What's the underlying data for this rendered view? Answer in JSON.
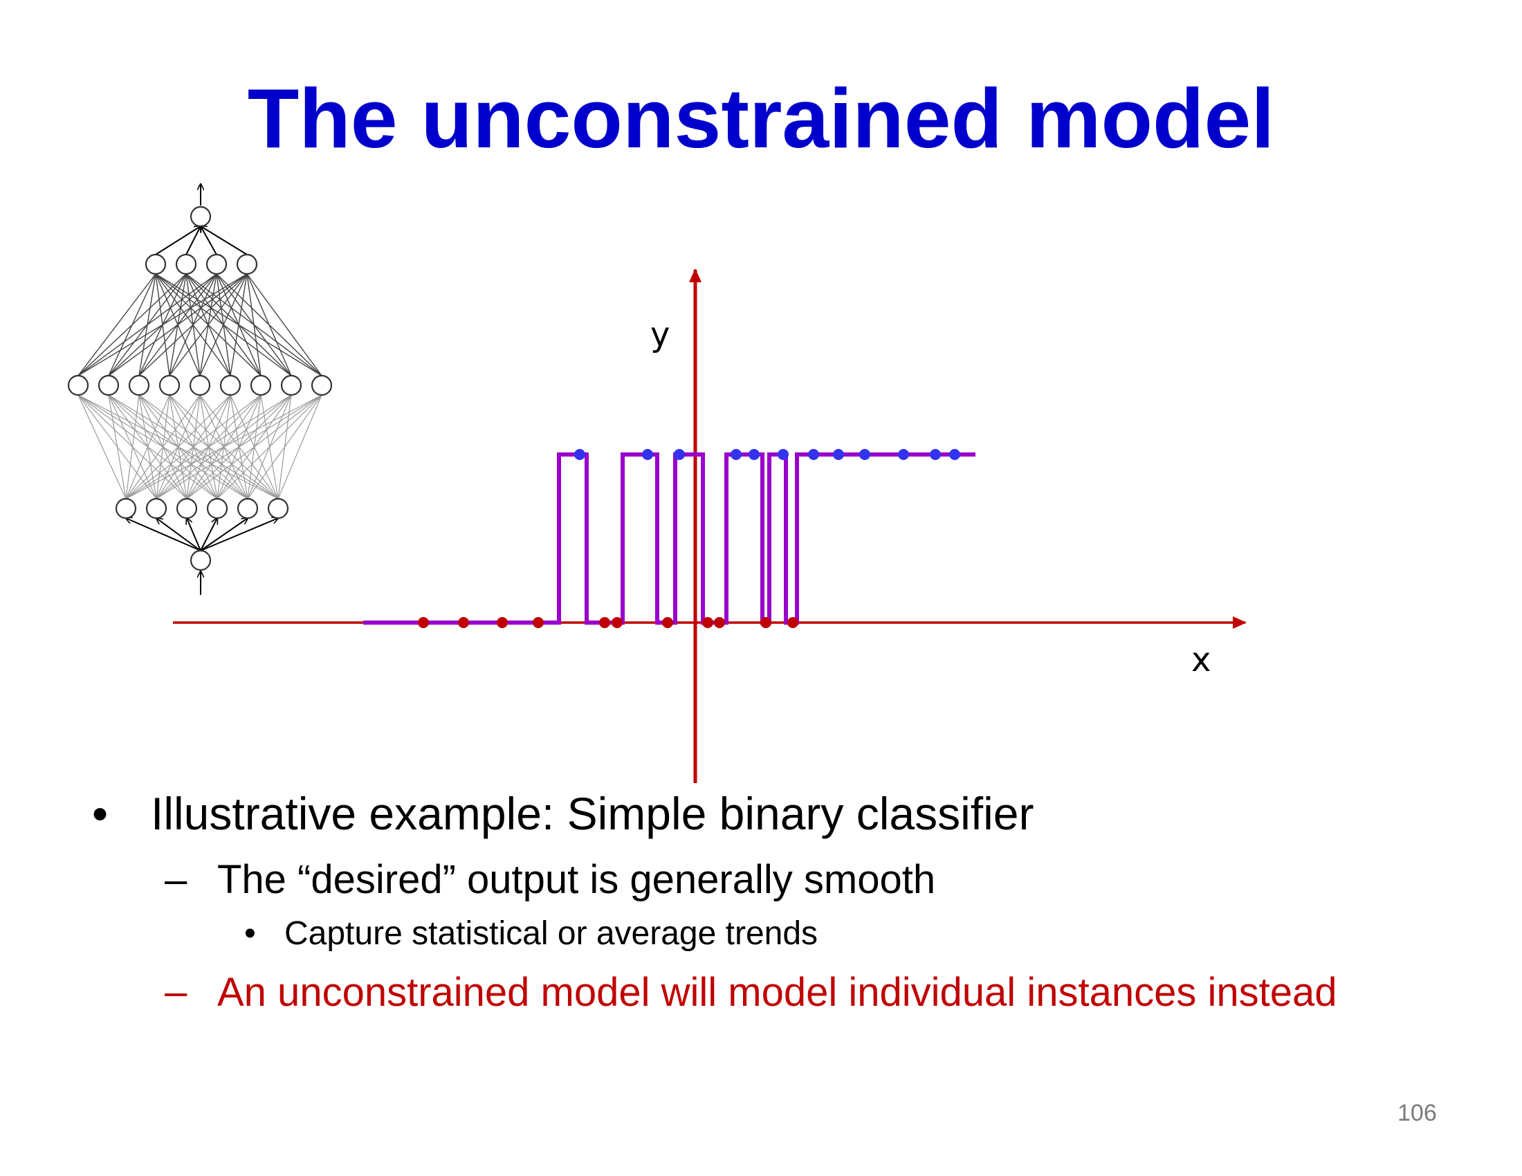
{
  "slide": {
    "title": "The unconstrained model",
    "page_number": "106"
  },
  "bullets": {
    "level1_marker": "•",
    "level1_text": "Illustrative example: Simple binary classifier",
    "level2_marker": "–",
    "level2_text": "The “desired” output is generally smooth",
    "level3_marker": "•",
    "level3_text": "Capture statistical or average trends",
    "level2b_marker": "–",
    "level2b_text": "An unconstrained model will model individual instances instead"
  },
  "plot": {
    "x_label": "x",
    "y_label": "y",
    "axis_color": "#c00000",
    "fit_color": "#9900cc",
    "class1_color": "#3333ee",
    "class0_color": "#c00000"
  },
  "network": {
    "layers": [
      1,
      6,
      9,
      4,
      1
    ]
  }
}
